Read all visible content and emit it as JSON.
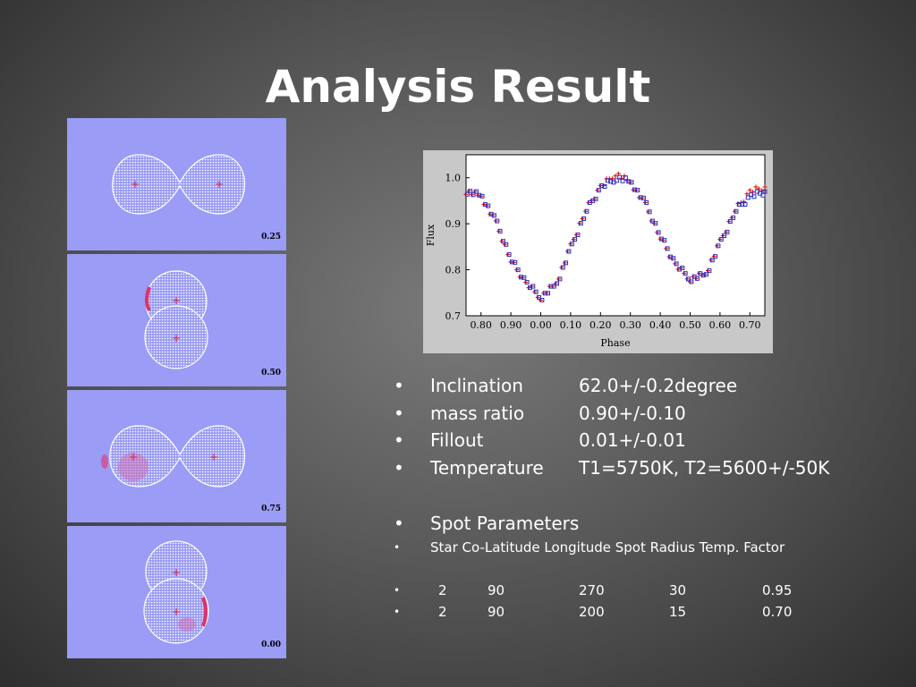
{
  "title": "Analysis Result",
  "panels": [
    {
      "phase": "0.25",
      "view": "side"
    },
    {
      "phase": "0.50",
      "view": "overlap-top"
    },
    {
      "phase": "0.75",
      "view": "side-spot"
    },
    {
      "phase": "0.00",
      "view": "overlap-bottom"
    }
  ],
  "chart_data": {
    "type": "scatter",
    "xlabel": "Phase",
    "ylabel": "Flux",
    "x_ticks": [
      "0.80",
      "0.90",
      "0.00",
      "0.10",
      "0.20",
      "0.30",
      "0.40",
      "0.50",
      "0.60",
      "0.70"
    ],
    "y_ticks": [
      "0.7",
      "0.8",
      "0.9",
      "1.0"
    ],
    "xlim": [
      0.75,
      1.75
    ],
    "ylim": [
      0.7,
      1.05
    ],
    "grid": false,
    "series": [
      {
        "marker": "plus",
        "color": "#e00000",
        "description_points": [
          [
            0.75,
            0.97
          ],
          [
            0.8,
            0.96
          ],
          [
            0.85,
            0.9
          ],
          [
            0.9,
            0.82
          ],
          [
            0.95,
            0.77
          ],
          [
            1.0,
            0.74
          ],
          [
            1.05,
            0.77
          ],
          [
            1.1,
            0.85
          ],
          [
            1.15,
            0.93
          ],
          [
            1.2,
            0.98
          ],
          [
            1.25,
            1.01
          ],
          [
            1.3,
            0.99
          ],
          [
            1.35,
            0.94
          ],
          [
            1.4,
            0.87
          ],
          [
            1.45,
            0.81
          ],
          [
            1.5,
            0.78
          ],
          [
            1.55,
            0.79
          ],
          [
            1.6,
            0.86
          ],
          [
            1.65,
            0.93
          ],
          [
            1.7,
            0.97
          ],
          [
            1.75,
            0.98
          ]
        ]
      },
      {
        "marker": "square",
        "color": "#3030c0",
        "description_points": [
          [
            0.75,
            0.97
          ],
          [
            0.8,
            0.96
          ],
          [
            0.85,
            0.9
          ],
          [
            0.9,
            0.82
          ],
          [
            0.95,
            0.77
          ],
          [
            1.0,
            0.74
          ],
          [
            1.05,
            0.77
          ],
          [
            1.1,
            0.85
          ],
          [
            1.15,
            0.93
          ],
          [
            1.2,
            0.98
          ],
          [
            1.25,
            1.0
          ],
          [
            1.3,
            0.99
          ],
          [
            1.35,
            0.94
          ],
          [
            1.4,
            0.87
          ],
          [
            1.45,
            0.81
          ],
          [
            1.5,
            0.78
          ],
          [
            1.55,
            0.79
          ],
          [
            1.6,
            0.86
          ],
          [
            1.65,
            0.93
          ],
          [
            1.7,
            0.96
          ],
          [
            1.75,
            0.97
          ]
        ]
      }
    ]
  },
  "results": [
    {
      "bullet": "•",
      "label": "Inclination",
      "value": "62.0+/-0.2degree"
    },
    {
      "bullet": "•",
      "label": "mass ratio",
      "value": "0.90+/-0.10"
    },
    {
      "bullet": "•",
      "label": "Fillout",
      "value": "0.01+/-0.01"
    },
    {
      "bullet": "•",
      "label": "Temperature",
      "value": "T1=5750K, T2=5600+/-50K"
    }
  ],
  "spot": {
    "bullet": "•",
    "title": "Spot Parameters",
    "header": "Star  Co-Latitude  Longitude  Spot Radius  Temp. Factor",
    "divider": "---------------------------------------------------------------------------",
    "rows": [
      {
        "star": "2",
        "colat": "90",
        "lon": "270",
        "radius": "30",
        "temp": "0.95"
      },
      {
        "star": "2",
        "colat": "90",
        "lon": "200",
        "radius": "15",
        "temp": "0.70"
      }
    ]
  }
}
